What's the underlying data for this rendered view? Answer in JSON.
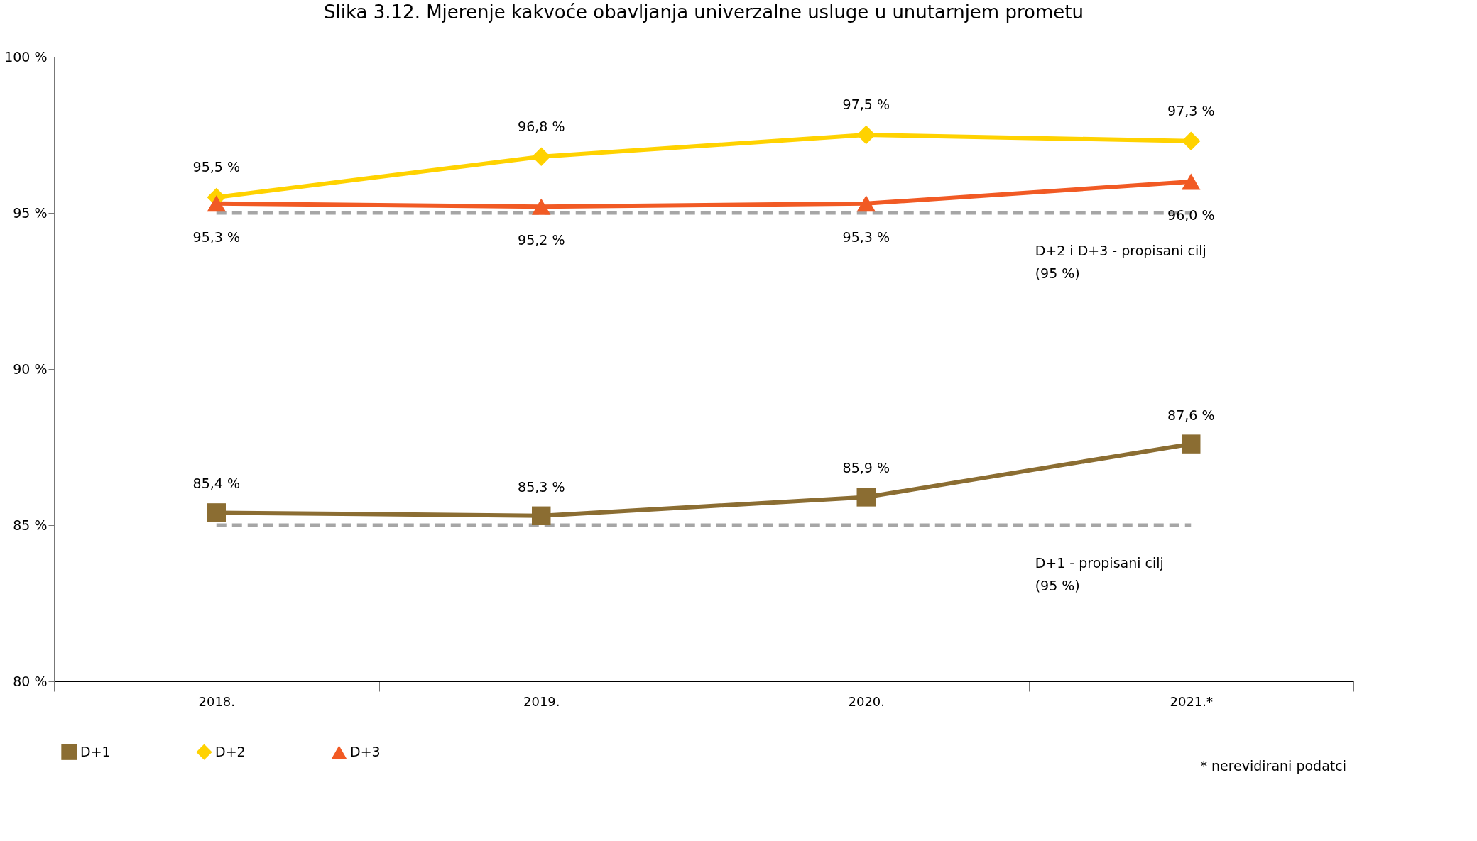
{
  "chart_data": {
    "type": "line",
    "title": "Slika 3.12. Mjerenje kakvoće obavljanja univerzalne usluge u unutarnjem prometu",
    "categories": [
      "2018.",
      "2019.",
      "2020.",
      "2021.*"
    ],
    "series": [
      {
        "name": "D+1",
        "color": "#8b6d32",
        "marker": "square",
        "values": [
          85.4,
          85.3,
          85.9,
          87.6
        ],
        "value_labels": [
          "85,4 %",
          "85,3 %",
          "85,9 %",
          "87,6 %"
        ]
      },
      {
        "name": "D+2",
        "color": "#ffd200",
        "marker": "diamond",
        "values": [
          95.5,
          96.8,
          97.5,
          97.3
        ],
        "value_labels": [
          "95,5 %",
          "96,8 %",
          "97,5 %",
          "97,3 %"
        ]
      },
      {
        "name": "D+3",
        "color": "#f15a24",
        "marker": "triangle",
        "values": [
          95.3,
          95.2,
          95.3,
          96.0
        ],
        "value_labels": [
          "95,3 %",
          "95,2 %",
          "95,3 %",
          "96,0 %"
        ]
      }
    ],
    "ylim": [
      80,
      100
    ],
    "yticks": [
      {
        "value": 80,
        "label": "80 %"
      },
      {
        "value": 85,
        "label": "85 %"
      },
      {
        "value": 90,
        "label": "90 %"
      },
      {
        "value": 95,
        "label": "95 %"
      },
      {
        "value": 100,
        "label": "100 %"
      }
    ],
    "ref_lines": [
      {
        "axis": "y",
        "value": 95,
        "label": "D+2 i D+3 - propisani cilj\n(95 %)",
        "color": "#a6a6a6",
        "line_style": "dashed"
      },
      {
        "axis": "y",
        "value": 85,
        "label": "D+1 - propisani cilj\n(95 %)",
        "color": "#a6a6a6",
        "line_style": "dashed"
      }
    ],
    "annotations": [
      "* nerevidirani podatci"
    ],
    "grid": false,
    "legend": "bottom",
    "line_style": "solid"
  }
}
